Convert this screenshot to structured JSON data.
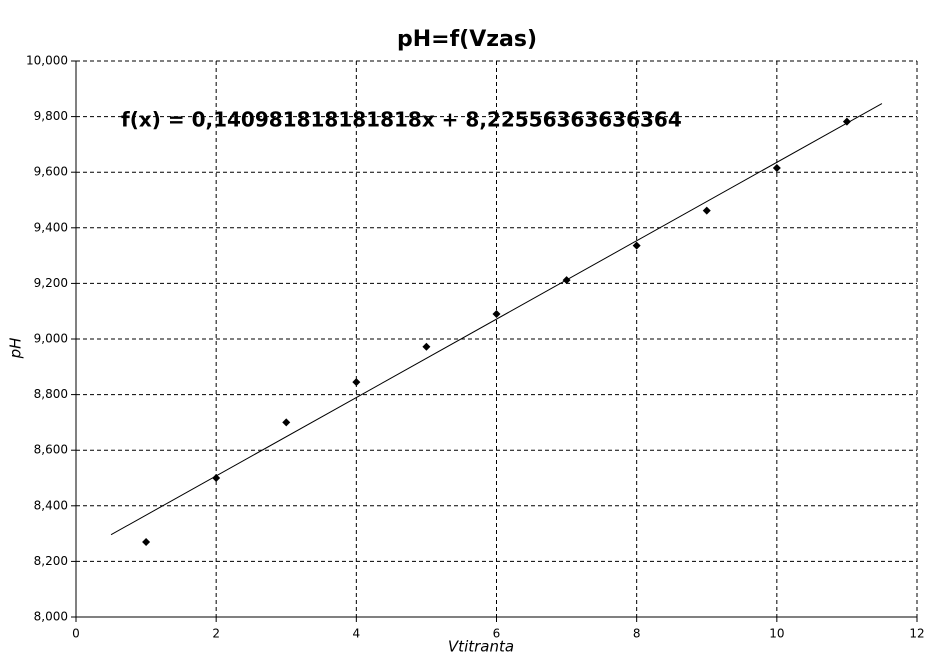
{
  "chart_data": {
    "type": "scatter",
    "title": "pH=f(Vzas)",
    "x_label": "Vtitranta",
    "y_label": "pH",
    "annotation": "f(x) = 0,140981818181818x + 8,22556363636364",
    "x": [
      1,
      2,
      3,
      4,
      5,
      6,
      7,
      8,
      9,
      10,
      11
    ],
    "values": [
      8.27,
      8.5,
      8.7,
      8.845,
      8.972,
      9.09,
      9.212,
      9.336,
      9.462,
      9.615,
      9.782
    ],
    "color": "#000000",
    "trendline": {
      "x": [
        0.5,
        11.5
      ],
      "values": [
        8.296,
        9.847
      ],
      "color": "#000000"
    },
    "xlim": [
      0,
      12
    ],
    "xticks": [
      0,
      2,
      4,
      6,
      8,
      10,
      12
    ],
    "ylim": [
      8,
      10
    ],
    "yticks": [
      {
        "value": 8,
        "label": "8,000"
      },
      {
        "value": 8.2,
        "label": "8,200"
      },
      {
        "value": 8.4,
        "label": "8,400"
      },
      {
        "value": 8.6,
        "label": "8,600"
      },
      {
        "value": 8.8,
        "label": "8,800"
      },
      {
        "value": 9,
        "label": "9,000"
      },
      {
        "value": 9.2,
        "label": "9,200"
      },
      {
        "value": 9.4,
        "label": "9,400"
      },
      {
        "value": 9.6,
        "label": "9,600"
      },
      {
        "value": 9.8,
        "label": "9,800"
      },
      {
        "value": 10,
        "label": "10,000"
      }
    ],
    "grid": true
  }
}
